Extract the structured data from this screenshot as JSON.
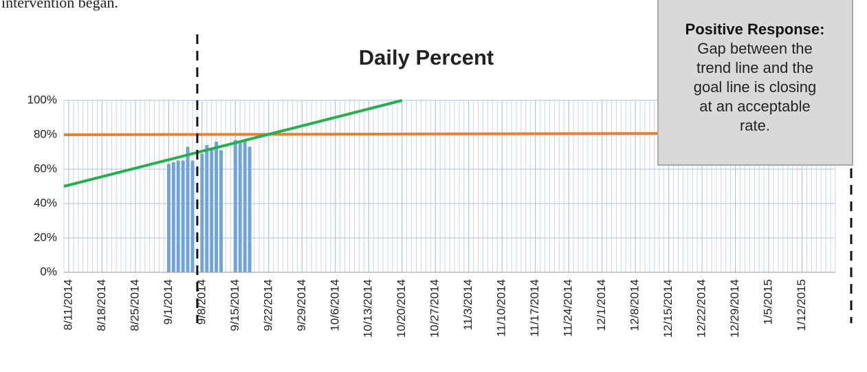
{
  "caption": "intervention began.",
  "callout": {
    "heading": "Positive Response:",
    "lines": [
      "Gap between the",
      "trend line and the",
      "goal line is closing",
      "at an acceptable",
      "rate."
    ]
  },
  "chart_data": {
    "type": "bar",
    "title": "Daily Percent",
    "x": [
      "9/1/2014",
      "9/2/2014",
      "9/3/2014",
      "9/4/2014",
      "9/5/2014",
      "9/6/2014",
      "9/8/2014",
      "9/9/2014",
      "9/10/2014",
      "9/11/2014",
      "9/12/2014",
      "9/15/2014",
      "9/16/2014",
      "9/17/2014",
      "9/18/2014"
    ],
    "values": [
      63,
      64,
      65,
      65,
      73,
      65,
      69,
      74,
      72,
      76,
      71,
      77,
      76,
      77,
      73
    ],
    "color": "#70a4dc",
    "lines": [
      {
        "x": [
          "8/10/2014",
          "1/19/2015"
        ],
        "values": [
          80,
          81
        ],
        "color": "#ed7d31"
      },
      {
        "x": [
          "8/10/2014",
          "10/20/2014"
        ],
        "values": [
          50,
          100
        ],
        "color": "#22b14c"
      }
    ],
    "intervention": "9/7/2014",
    "xlim": [
      "8/10/2014",
      "1/19/2015"
    ],
    "xticks": [
      "8/11/2014",
      "8/18/2014",
      "8/25/2014",
      "9/1/2014",
      "9/8/2014",
      "9/15/2014",
      "9/22/2014",
      "9/29/2014",
      "10/6/2014",
      "10/13/2014",
      "10/20/2014",
      "10/27/2014",
      "11/3/2014",
      "11/10/2014",
      "11/17/2014",
      "11/24/2014",
      "12/1/2014",
      "12/8/2014",
      "12/15/2014",
      "12/22/2014",
      "12/29/2014",
      "1/5/2015",
      "1/12/2015"
    ],
    "ylim": [
      0,
      100
    ],
    "yticks": [
      {
        "value": 0,
        "label": "0%"
      },
      {
        "value": 20,
        "label": "20%"
      },
      {
        "value": 40,
        "label": "40%"
      },
      {
        "value": 60,
        "label": "60%"
      },
      {
        "value": 80,
        "label": "80%"
      },
      {
        "value": 100,
        "label": "100%"
      }
    ],
    "grid": true
  }
}
